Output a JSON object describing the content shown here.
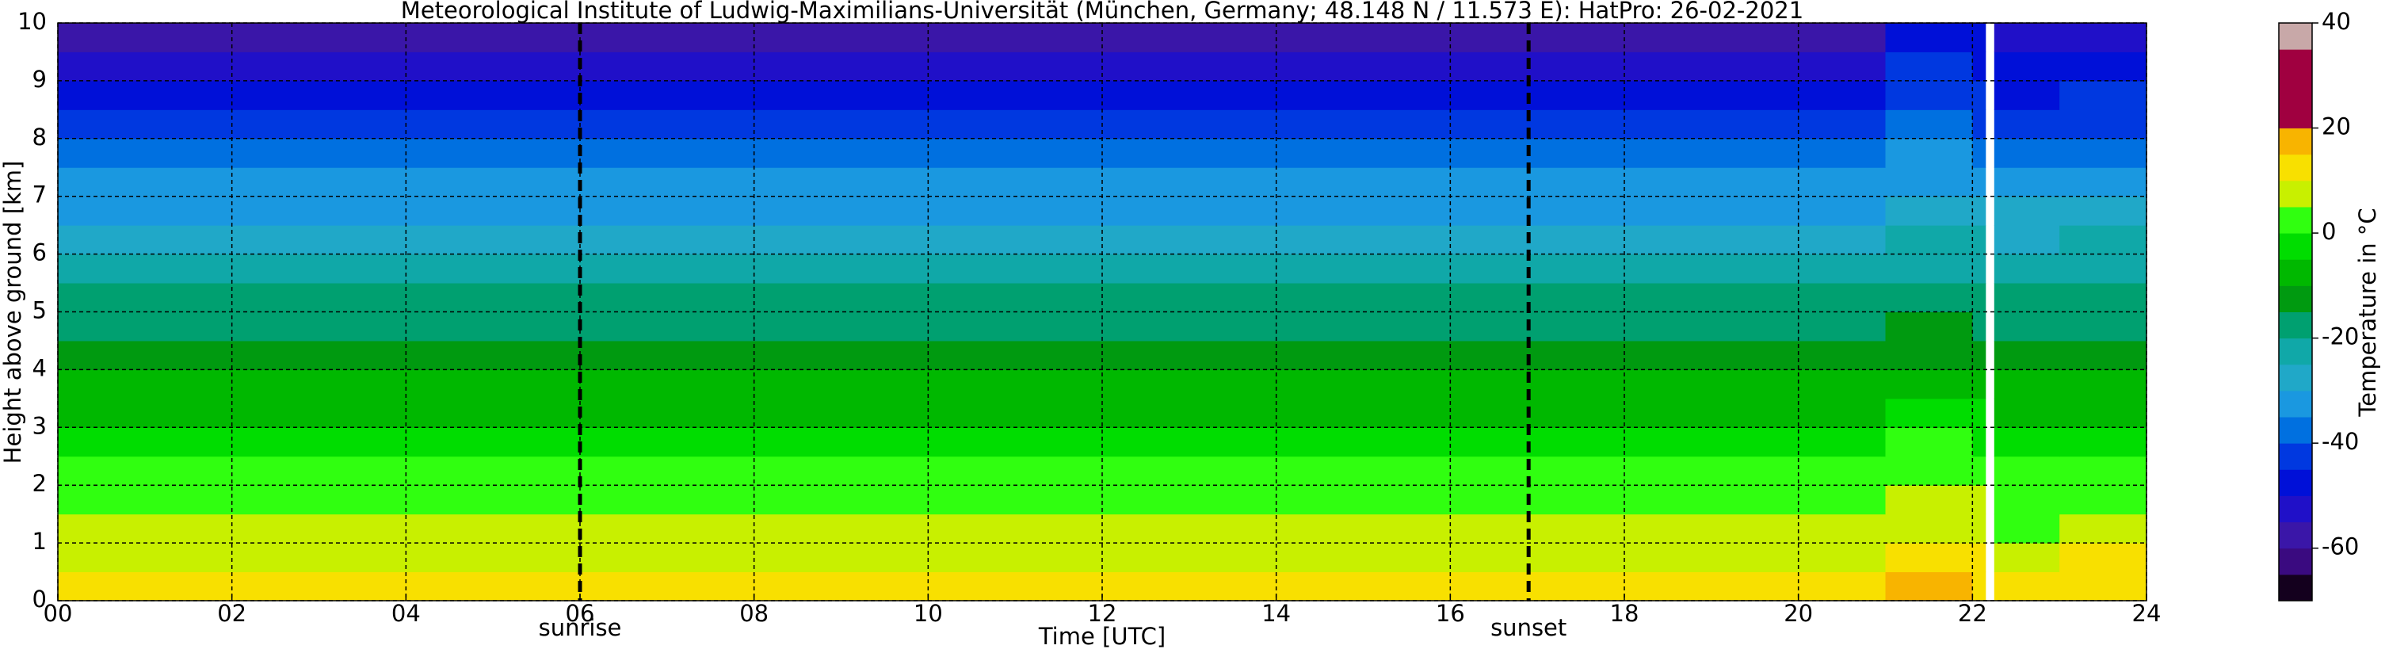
{
  "chart_data": {
    "type": "heatmap",
    "title": "Meteorological Institute of Ludwig-Maximilians-Universität (München, Germany; 48.148 N / 11.573 E):    HatPro: 26-02-2021",
    "x_label": "Time [UTC]",
    "y_label": "Height above ground [km]",
    "x_edges": [
      0,
      6,
      12,
      18,
      21,
      22,
      22.15,
      22.25,
      23,
      24
    ],
    "y_edges": [
      0,
      0.5,
      1,
      1.5,
      2,
      2.5,
      3,
      3.5,
      4,
      4.5,
      5,
      5.5,
      6,
      6.5,
      7,
      7.5,
      8,
      8.5,
      9,
      9.5,
      10
    ],
    "values": [
      [
        12,
        12,
        12,
        12,
        16,
        14,
        null,
        12,
        14
      ],
      [
        9,
        9,
        9,
        9,
        13,
        11,
        null,
        7,
        11
      ],
      [
        6,
        6,
        6,
        6,
        9,
        7,
        null,
        4,
        7
      ],
      [
        4,
        4,
        4,
        4,
        6,
        5,
        null,
        2,
        4
      ],
      [
        1,
        1,
        1,
        1,
        3,
        2,
        null,
        0,
        1
      ],
      [
        -2,
        -2,
        -2,
        -2,
        0,
        -1,
        null,
        -3,
        -2
      ],
      [
        -6,
        -6,
        -6,
        -6,
        -4,
        -5,
        null,
        -7,
        -6
      ],
      [
        -9,
        -9,
        -9,
        -9,
        -8,
        -9,
        null,
        -10,
        -9
      ],
      [
        -13,
        -13,
        -13,
        -13,
        -12,
        -13,
        null,
        -14,
        -13
      ],
      [
        -16,
        -16,
        -16,
        -16,
        -15,
        -16,
        null,
        -17,
        -16
      ],
      [
        -19,
        -19,
        -19,
        -19,
        -18,
        -19,
        null,
        -20,
        -19
      ],
      [
        -22,
        -22,
        -22,
        -22,
        -21,
        -22,
        null,
        -23,
        -22
      ],
      [
        -27,
        -27,
        -27,
        -27,
        -24,
        -25,
        null,
        -26,
        -25
      ],
      [
        -31,
        -31,
        -31,
        -31,
        -28,
        -29,
        null,
        -30,
        -29
      ],
      [
        -35,
        -35,
        -35,
        -35,
        -32,
        -33,
        null,
        -34,
        -33
      ],
      [
        -39,
        -39,
        -39,
        -39,
        -35,
        -37,
        null,
        -38,
        -37
      ],
      [
        -44,
        -44,
        -44,
        -44,
        -38,
        -41,
        null,
        -43,
        -41
      ],
      [
        -50,
        -50,
        -50,
        -50,
        -41,
        -44,
        null,
        -47,
        -45
      ],
      [
        -54,
        -54,
        -54,
        -54,
        -44,
        -47,
        null,
        -50,
        -48
      ],
      [
        -58,
        -57,
        -57,
        -57,
        -48,
        -50,
        null,
        -53,
        -51
      ]
    ],
    "xlim": [
      0,
      24
    ],
    "ylim": [
      0,
      10
    ],
    "xticks": [
      {
        "value": 0,
        "label": "00"
      },
      {
        "value": 2,
        "label": "02"
      },
      {
        "value": 4,
        "label": "04"
      },
      {
        "value": 6,
        "label": "06"
      },
      {
        "value": 8,
        "label": "08"
      },
      10,
      12,
      14,
      16,
      18,
      20,
      22,
      24
    ],
    "yticks": [
      0,
      1,
      2,
      3,
      4,
      5,
      6,
      7,
      8,
      9,
      10
    ],
    "grid": true,
    "annotations": [
      {
        "label": "sunrise",
        "x": 6.0
      },
      {
        "label": "sunset",
        "x": 16.9
      }
    ],
    "colorbar": {
      "label": "Temperature in °C",
      "lim": [
        -70,
        40
      ],
      "ticks": [
        -60,
        -40,
        -20,
        0,
        20,
        40
      ],
      "bounds": [
        -70,
        -65,
        -60,
        -55,
        -50,
        -45,
        -40,
        -35,
        -30,
        -25,
        -20,
        -15,
        -10,
        -5,
        0,
        5,
        10,
        15,
        20,
        25,
        30,
        35,
        40
      ],
      "colors": [
        "#14001e",
        "#3a0a80",
        "#3a16a8",
        "#2010c8",
        "#0010d8",
        "#0038e0",
        "#0070e0",
        "#1a98e0",
        "#20a8c8",
        "#10a8a8",
        "#00a070",
        "#009a10",
        "#00b800",
        "#00dd00",
        "#30ff10",
        "#c8f000",
        "#f8e000",
        "#f8b400",
        "#a00040",
        "#a00040",
        "#a00040",
        "#c8a8a8"
      ]
    }
  }
}
